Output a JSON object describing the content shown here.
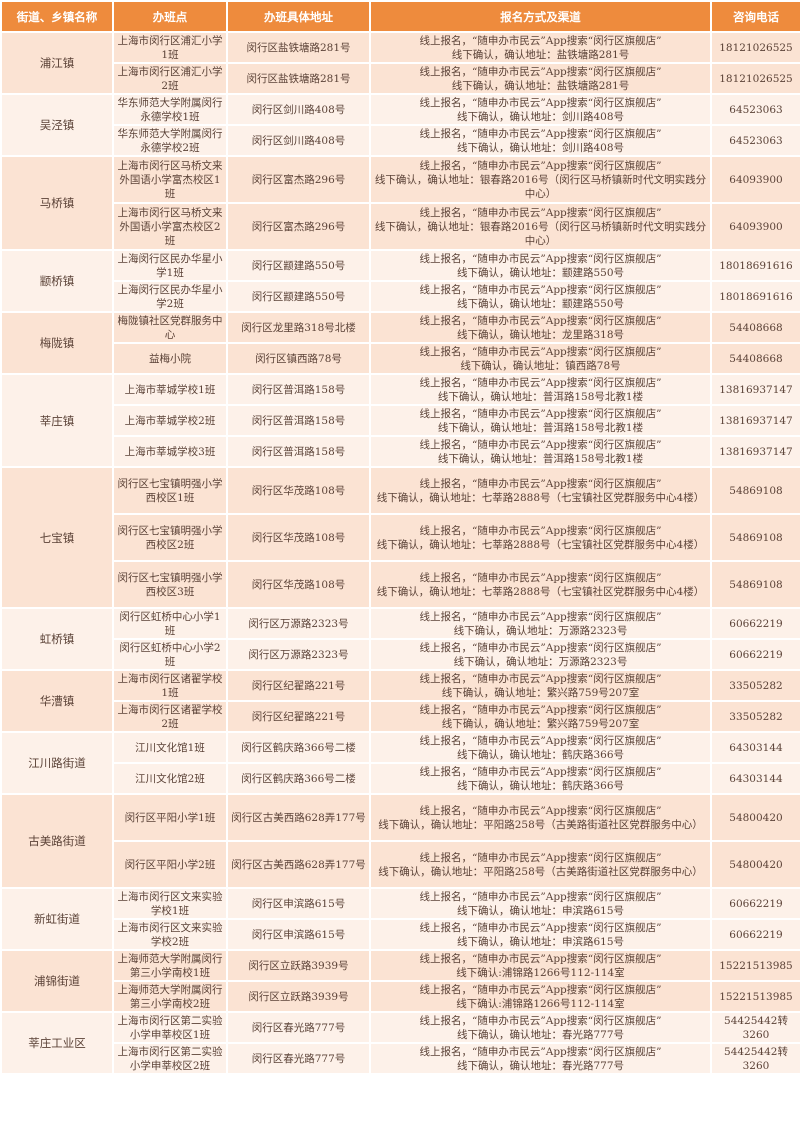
{
  "colors": {
    "header": "#ee8b3d",
    "group_a": "#fbe3d3",
    "group_b": "#fdf1e9"
  },
  "table": {
    "headers": [
      "街道、乡镇名称",
      "办班点",
      "办班具体地址",
      "报名方式及渠道",
      "咨询电话"
    ],
    "online_text": "线上报名，“随申办市民云”App搜索“闵行区旗舰店”",
    "groups": [
      {
        "town": "浦江镇",
        "rows": [
          {
            "site": "上海市闵行区浦汇小学1班",
            "address": "闵行区盐铁塘路281号",
            "offline": "线下确认，确认地址：盐铁塘路281号",
            "phone": "18121026525"
          },
          {
            "site": "上海市闵行区浦汇小学2班",
            "address": "闵行区盐铁塘路281号",
            "offline": "线下确认，确认地址：盐铁塘路281号",
            "phone": "18121026525"
          }
        ]
      },
      {
        "town": "吴泾镇",
        "rows": [
          {
            "site": "华东师范大学附属闵行永德学校1班",
            "address": "闵行区剑川路408号",
            "offline": "线下确认，确认地址：剑川路408号",
            "phone": "64523063"
          },
          {
            "site": "华东师范大学附属闵行永德学校2班",
            "address": "闵行区剑川路408号",
            "offline": "线下确认，确认地址：剑川路408号",
            "phone": "64523063"
          }
        ]
      },
      {
        "town": "马桥镇",
        "tall": true,
        "rows": [
          {
            "site": "上海市闵行区马桥文来外国语小学富杰校区1班",
            "address": "闵行区富杰路296号",
            "offline": "线下确认，确认地址：银春路2016号（闵行区马桥镇新时代文明实践分中心）",
            "phone": "64093900"
          },
          {
            "site": "上海市闵行区马桥文来外国语小学富杰校区2班",
            "address": "闵行区富杰路296号",
            "offline": "线下确认，确认地址：银春路2016号（闵行区马桥镇新时代文明实践分中心）",
            "phone": "64093900"
          }
        ]
      },
      {
        "town": "颛桥镇",
        "rows": [
          {
            "site": "上海闵行区民办华星小学1班",
            "address": "闵行区颛建路550号",
            "offline": "线下确认，确认地址：颛建路550号",
            "phone": "18018691616"
          },
          {
            "site": "上海闵行区民办华星小学2班",
            "address": "闵行区颛建路550号",
            "offline": "线下确认，确认地址：颛建路550号",
            "phone": "18018691616"
          }
        ]
      },
      {
        "town": "梅陇镇",
        "rows": [
          {
            "site": "梅陇镇社区党群服务中心",
            "address": "闵行区龙里路318号北楼",
            "offline": "线下确认，确认地址：龙里路318号",
            "phone": "54408668"
          },
          {
            "site": "益梅小院",
            "address": "闵行区镇西路78号",
            "offline": "线下确认，确认地址：镇西路78号",
            "phone": "54408668"
          }
        ]
      },
      {
        "town": "莘庄镇",
        "rows": [
          {
            "site": "上海市莘城学校1班",
            "address": "闵行区普洱路158号",
            "offline": "线下确认，确认地址：普洱路158号北教1楼",
            "phone": "13816937147"
          },
          {
            "site": "上海市莘城学校2班",
            "address": "闵行区普洱路158号",
            "offline": "线下确认，确认地址：普洱路158号北教1楼",
            "phone": "13816937147"
          },
          {
            "site": "上海市莘城学校3班",
            "address": "闵行区普洱路158号",
            "offline": "线下确认，确认地址：普洱路158号北教1楼",
            "phone": "13816937147"
          }
        ]
      },
      {
        "town": "七宝镇",
        "tall": true,
        "rows": [
          {
            "site": "闵行区七宝镇明强小学西校区1班",
            "address": "闵行区华茂路108号",
            "offline": "线下确认，确认地址：七莘路2888号（七宝镇社区党群服务中心4楼）",
            "phone": "54869108"
          },
          {
            "site": "闵行区七宝镇明强小学西校区2班",
            "address": "闵行区华茂路108号",
            "offline": "线下确认，确认地址：七莘路2888号（七宝镇社区党群服务中心4楼）",
            "phone": "54869108"
          },
          {
            "site": "闵行区七宝镇明强小学西校区3班",
            "address": "闵行区华茂路108号",
            "offline": "线下确认，确认地址：七莘路2888号（七宝镇社区党群服务中心4楼）",
            "phone": "54869108"
          }
        ]
      },
      {
        "town": "虹桥镇",
        "rows": [
          {
            "site": "闵行区虹桥中心小学1班",
            "address": "闵行区万源路2323号",
            "offline": "线下确认，确认地址：万源路2323号",
            "phone": "60662219"
          },
          {
            "site": "闵行区虹桥中心小学2班",
            "address": "闵行区万源路2323号",
            "offline": "线下确认，确认地址：万源路2323号",
            "phone": "60662219"
          }
        ]
      },
      {
        "town": "华漕镇",
        "rows": [
          {
            "site": "上海市闵行区诸翟学校1班",
            "address": "闵行区纪翟路221号",
            "offline": "线下确认，确认地址：繁兴路759号207室",
            "phone": "33505282"
          },
          {
            "site": "上海市闵行区诸翟学校2班",
            "address": "闵行区纪翟路221号",
            "offline": "线下确认，确认地址：繁兴路759号207室",
            "phone": "33505282"
          }
        ]
      },
      {
        "town": "江川路街道",
        "rows": [
          {
            "site": "江川文化馆1班",
            "address": "闵行区鹤庆路366号二楼",
            "offline": "线下确认，确认地址：鹤庆路366号",
            "phone": "64303144"
          },
          {
            "site": "江川文化馆2班",
            "address": "闵行区鹤庆路366号二楼",
            "offline": "线下确认，确认地址：鹤庆路366号",
            "phone": "64303144"
          }
        ]
      },
      {
        "town": "古美路街道",
        "tall": true,
        "rows": [
          {
            "site": "闵行区平阳小学1班",
            "address": "闵行区古美西路628弄177号",
            "offline": "线下确认，确认地址：平阳路258号（古美路街道社区党群服务中心）",
            "phone": "54800420"
          },
          {
            "site": "闵行区平阳小学2班",
            "address": "闵行区古美西路628弄177号",
            "offline": "线下确认，确认地址：平阳路258号（古美路街道社区党群服务中心）",
            "phone": "54800420"
          }
        ]
      },
      {
        "town": "新虹街道",
        "rows": [
          {
            "site": "上海市闵行区文来实验学校1班",
            "address": "闵行区申滨路615号",
            "offline": "线下确认，确认地址：申滨路615号",
            "phone": "60662219"
          },
          {
            "site": "上海市闵行区文来实验学校2班",
            "address": "闵行区申滨路615号",
            "offline": "线下确认，确认地址：申滨路615号",
            "phone": "60662219"
          }
        ]
      },
      {
        "town": "浦锦街道",
        "rows": [
          {
            "site": "上海师范大学附属闵行第三小学南校1班",
            "address": "闵行区立跃路3939号",
            "offline": "线下确认:浦锦路1266号112-114室",
            "phone": "15221513985"
          },
          {
            "site": "上海师范大学附属闵行第三小学南校2班",
            "address": "闵行区立跃路3939号",
            "offline": "线下确认:浦锦路1266号112-114室",
            "phone": "15221513985"
          }
        ]
      },
      {
        "town": "莘庄工业区",
        "rows": [
          {
            "site": "上海市闵行区第二实验小学申莘校区1班",
            "address": "闵行区春光路777号",
            "offline": "线下确认，确认地址：春光路777号",
            "phone": "54425442转3260"
          },
          {
            "site": "上海市闵行区第二实验小学申莘校区2班",
            "address": "闵行区春光路777号",
            "offline": "线下确认，确认地址：春光路777号",
            "phone": "54425442转3260"
          }
        ]
      }
    ]
  }
}
